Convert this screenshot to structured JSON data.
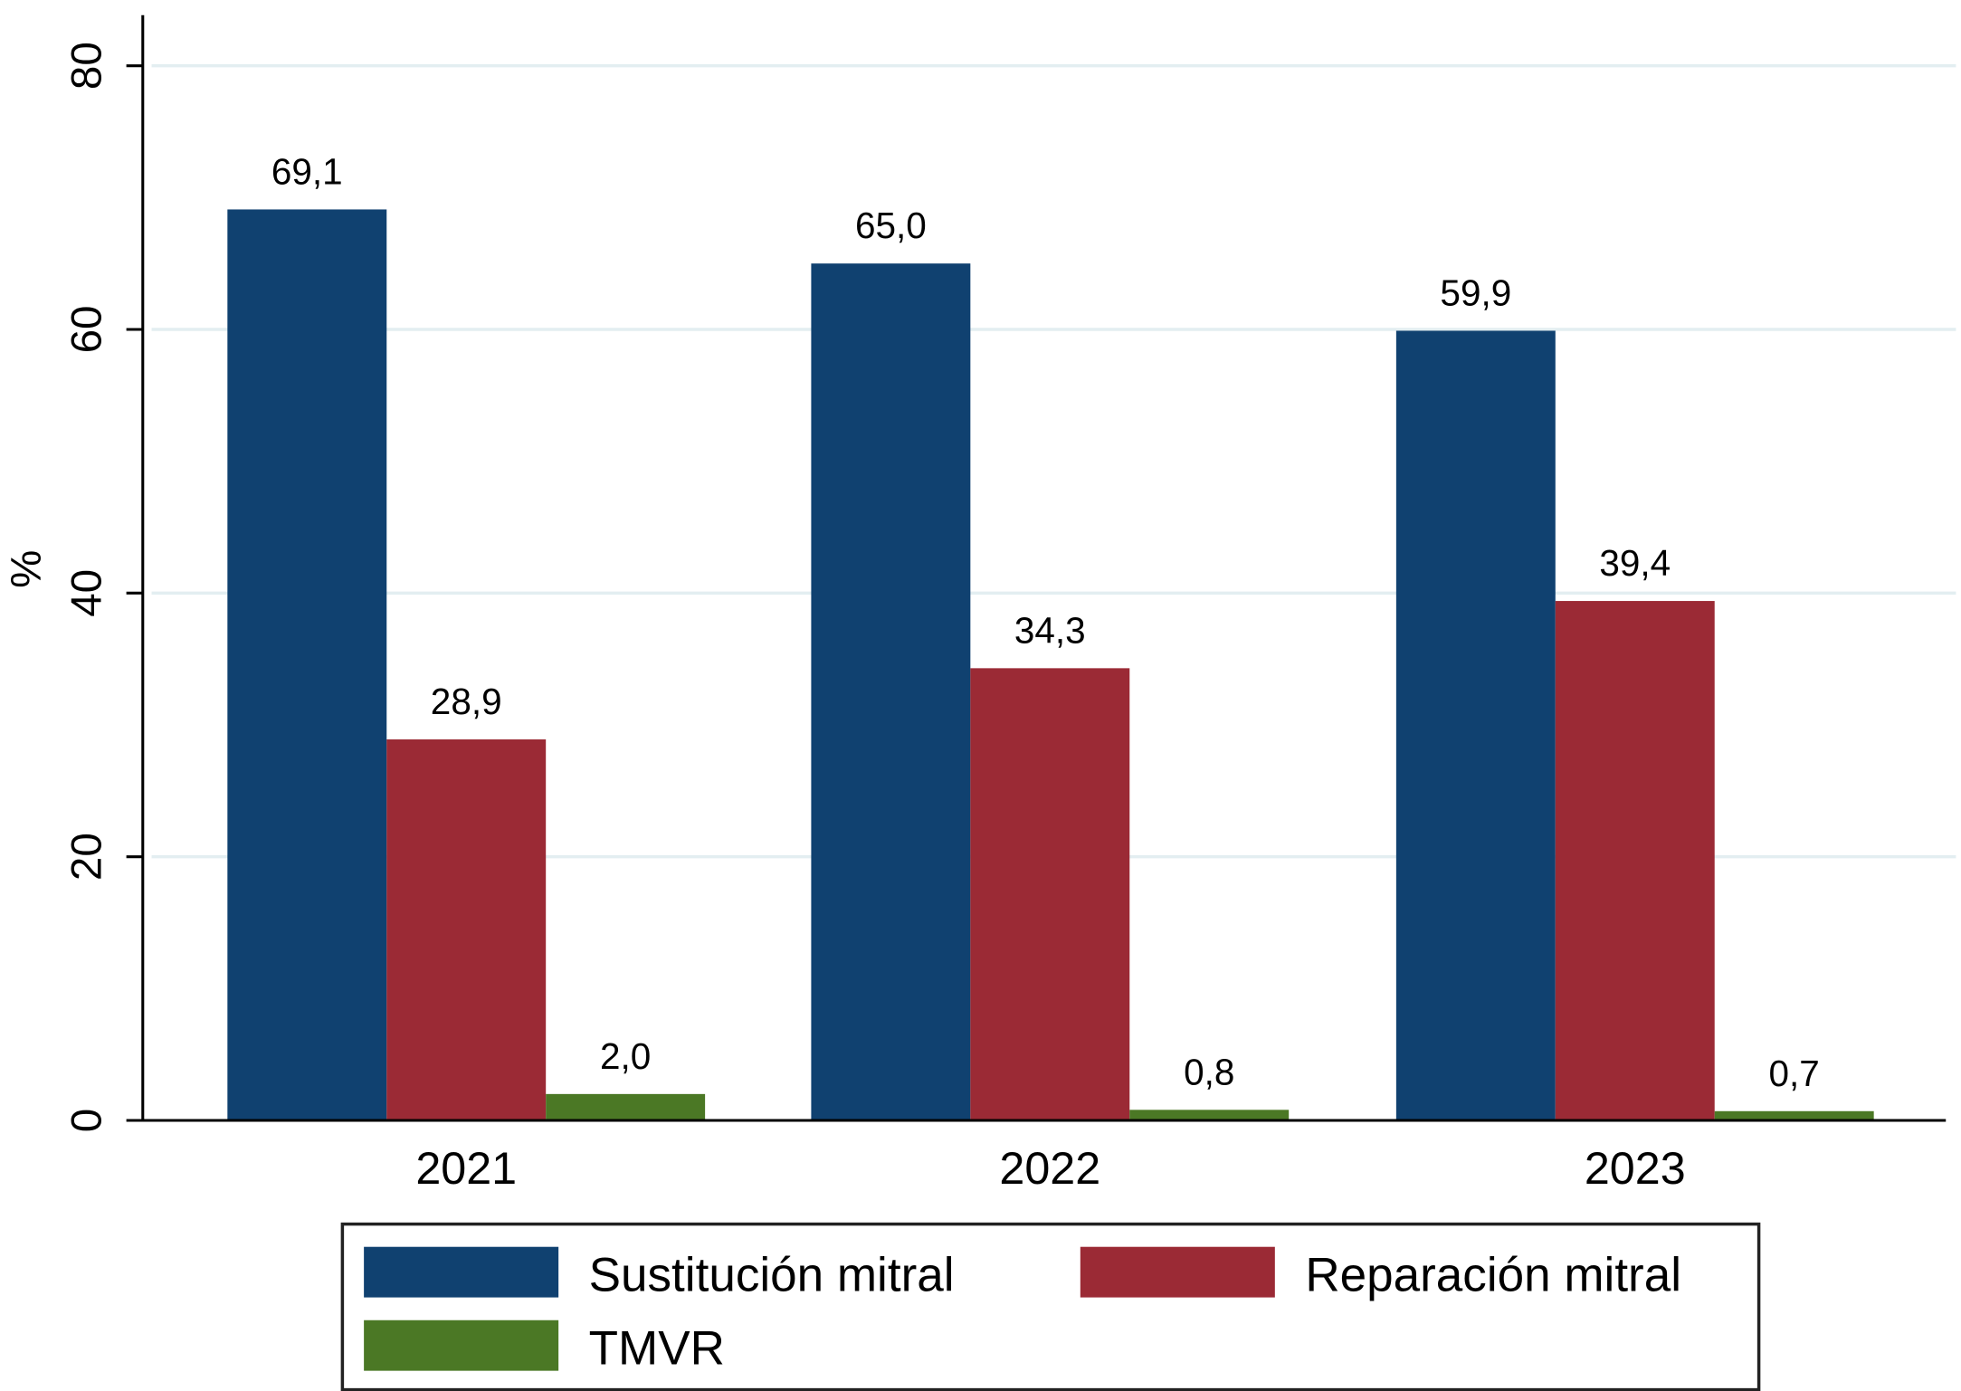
{
  "chart_data": {
    "type": "bar",
    "title": "",
    "xlabel": "",
    "ylabel": "%",
    "ylim": [
      0,
      80
    ],
    "yticks": [
      0,
      20,
      40,
      60,
      80
    ],
    "ytick_labels": [
      "0",
      "20",
      "40",
      "60",
      "80"
    ],
    "grid": true,
    "categories": [
      "2021",
      "2022",
      "2023"
    ],
    "series": [
      {
        "name": "Sustitución mitral",
        "color": "#104170",
        "values": [
          69.1,
          65.0,
          59.9
        ],
        "labels": [
          "69,1",
          "65,0",
          "59,9"
        ]
      },
      {
        "name": "Reparación mitral",
        "color": "#9b2a35",
        "values": [
          28.9,
          34.3,
          39.4
        ],
        "labels": [
          "28,9",
          "34,3",
          "39,4"
        ]
      },
      {
        "name": "TMVR",
        "color": "#4b7825",
        "values": [
          2.0,
          0.8,
          0.7
        ],
        "labels": [
          "2,0",
          "0,8",
          "0,7"
        ]
      }
    ],
    "legend": {
      "position": "bottom",
      "items": [
        "Sustitución mitral",
        "Reparación mitral",
        "TMVR"
      ]
    }
  },
  "colors": {
    "grid": "#e3eef1",
    "axis": "#000000"
  }
}
